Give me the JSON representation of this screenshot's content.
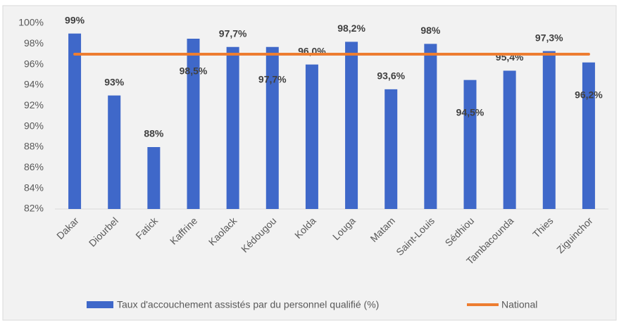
{
  "chart_data": {
    "type": "bar",
    "categories": [
      "Dakar",
      "Diourbel",
      "Fatick",
      "Kaffrine",
      "Kaolack",
      "Kédougou",
      "Kolda",
      "Louga",
      "Matam",
      "Saint-Louis",
      "Sédhiou",
      "Tambacounda",
      "Thies",
      "Ziguinchor"
    ],
    "series": [
      {
        "name": "Taux d'accouchement assistés par du personnel qualifié (%)",
        "type": "bar",
        "color": "#3f68c9",
        "values": [
          99,
          93,
          88,
          98.5,
          97.7,
          97.7,
          96.0,
          98.2,
          93.6,
          98,
          94.5,
          95.4,
          97.3,
          96.2
        ],
        "value_labels": [
          "99%",
          "93%",
          "88%",
          "98,5%",
          "97,7%",
          "97,7%",
          "96,0%",
          "98,2%",
          "93,6%",
          "98%",
          "94,5%",
          "95,4%",
          "97,3%",
          "96,2%"
        ]
      },
      {
        "name": "National",
        "type": "line",
        "color": "#ed7d31",
        "values": [
          97,
          97,
          97,
          97,
          97,
          97,
          97,
          97,
          97,
          97,
          97,
          97,
          97,
          97
        ]
      }
    ],
    "ylim": [
      82,
      100
    ],
    "yticks": [
      {
        "value": 82,
        "label": "82%"
      },
      {
        "value": 84,
        "label": "84%"
      },
      {
        "value": 86,
        "label": "86%"
      },
      {
        "value": 88,
        "label": "88%"
      },
      {
        "value": 90,
        "label": "90%"
      },
      {
        "value": 92,
        "label": "92%"
      },
      {
        "value": 94,
        "label": "94%"
      },
      {
        "value": 96,
        "label": "96%"
      },
      {
        "value": 98,
        "label": "98%"
      },
      {
        "value": 100,
        "label": "100%"
      }
    ],
    "grid": false,
    "legend": "bottom"
  }
}
